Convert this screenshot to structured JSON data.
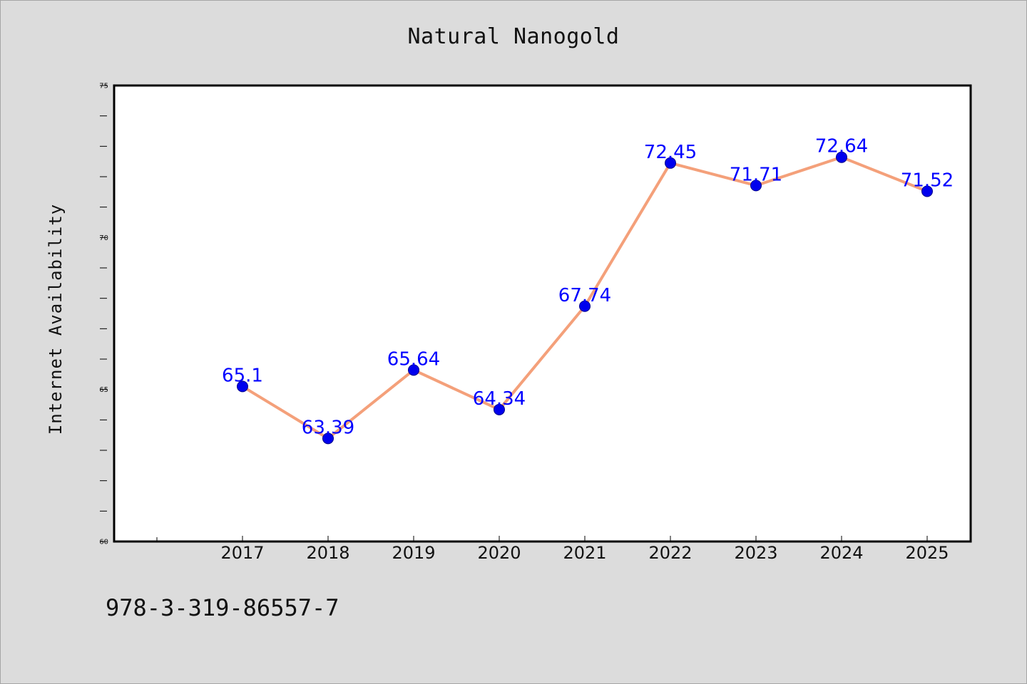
{
  "colors": {
    "background": "#dcdcdc",
    "plot_bg": "#ffffff",
    "line": "#f4a07a",
    "marker": "#0000ee",
    "data_label": "#0000ff"
  },
  "footer_text": "978-3-319-86557-7",
  "chart_data": {
    "type": "line",
    "title": "Natural Nanogold",
    "xlabel": "",
    "ylabel": "Internet Availability",
    "x": [
      "2017",
      "2018",
      "2019",
      "2020",
      "2021",
      "2022",
      "2023",
      "2024",
      "2025"
    ],
    "values": [
      65.1,
      63.39,
      65.64,
      64.34,
      67.74,
      72.45,
      71.71,
      72.64,
      71.52
    ],
    "data_labels": [
      "65.1",
      "63.39",
      "65.64",
      "64.34",
      "67.74",
      "72.45",
      "71.71",
      "72.64",
      "71.52"
    ],
    "ylim": [
      60,
      75
    ],
    "yticks": [
      "60",
      "65",
      "70",
      "75"
    ],
    "grid": false,
    "legend": "none"
  }
}
